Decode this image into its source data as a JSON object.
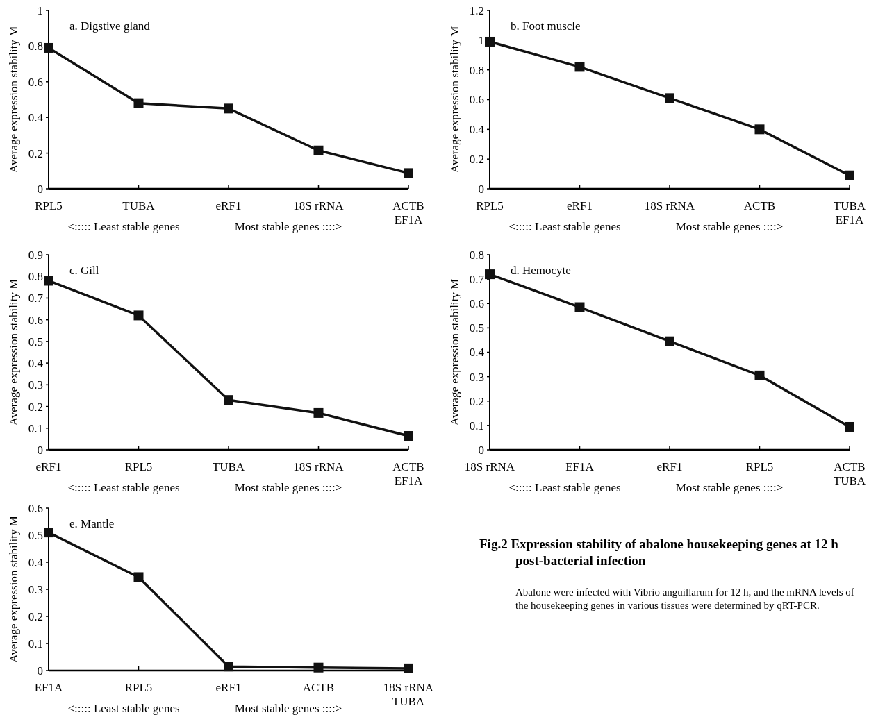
{
  "chart_data": [
    {
      "type": "line",
      "title": "a. Digstive gland",
      "ylabel": "Average expression stability M",
      "categories": [
        "RPL5",
        "TUBA",
        "eRF1",
        "18S rRNA",
        "ACTB\nEF1A"
      ],
      "values": [
        0.79,
        0.48,
        0.45,
        0.215,
        0.088
      ],
      "color": "#111111",
      "ylim": [
        0,
        1
      ],
      "yticks": [
        0,
        0.2,
        0.4,
        0.6,
        0.8,
        1
      ],
      "marker": "square",
      "line_style": "solid",
      "annotations": [
        "<:::::  Least stable genes",
        "Most stable genes ::::>"
      ]
    },
    {
      "type": "line",
      "title": "b. Foot muscle",
      "ylabel": "Average expression stability M",
      "categories": [
        "RPL5",
        "eRF1",
        "18S rRNA",
        "ACTB",
        "TUBA\nEF1A"
      ],
      "values": [
        0.99,
        0.82,
        0.61,
        0.4,
        0.09
      ],
      "color": "#111111",
      "ylim": [
        0,
        1.2
      ],
      "yticks": [
        0,
        0.2,
        0.4,
        0.6,
        0.8,
        1,
        1.2
      ],
      "marker": "square",
      "line_style": "solid",
      "annotations": [
        "<:::::  Least stable genes",
        "Most stable genes ::::>"
      ]
    },
    {
      "type": "line",
      "title": "c. Gill",
      "ylabel": "Average expression stability M",
      "categories": [
        "eRF1",
        "RPL5",
        "TUBA",
        "18S rRNA",
        "ACTB\nEF1A"
      ],
      "values": [
        0.78,
        0.62,
        0.23,
        0.17,
        0.064
      ],
      "color": "#111111",
      "ylim": [
        0,
        0.9
      ],
      "yticks": [
        0,
        0.1,
        0.2,
        0.3,
        0.4,
        0.5,
        0.6,
        0.7,
        0.8,
        0.9
      ],
      "marker": "square",
      "line_style": "solid",
      "annotations": [
        "<:::::  Least stable genes",
        "Most stable genes ::::>"
      ]
    },
    {
      "type": "line",
      "title": "d. Hemocyte",
      "ylabel": "Average expression stability M",
      "categories": [
        "18S rRNA",
        "EF1A",
        "eRF1",
        "RPL5",
        "ACTB\nTUBA"
      ],
      "values": [
        0.72,
        0.585,
        0.445,
        0.305,
        0.094
      ],
      "color": "#111111",
      "ylim": [
        0,
        0.8
      ],
      "yticks": [
        0,
        0.1,
        0.2,
        0.3,
        0.4,
        0.5,
        0.6,
        0.7,
        0.8
      ],
      "marker": "square",
      "line_style": "solid",
      "annotations": [
        "<:::::  Least stable genes",
        "Most stable genes ::::>"
      ]
    },
    {
      "type": "line",
      "title": "e. Mantle",
      "ylabel": "Average expression stability M",
      "categories": [
        "EF1A",
        "RPL5",
        "eRF1",
        "ACTB",
        "18S rRNA\nTUBA"
      ],
      "values": [
        0.51,
        0.345,
        0.015,
        0.011,
        0.008
      ],
      "color": "#111111",
      "ylim": [
        0,
        0.6
      ],
      "yticks": [
        0,
        0.1,
        0.2,
        0.3,
        0.4,
        0.5,
        0.6
      ],
      "marker": "square",
      "line_style": "solid",
      "annotations": [
        "<:::::  Least stable genes",
        "Most stable genes ::::>"
      ]
    },
    {
      "type": "other",
      "title": "Fig.2 Expression stability of abalone housekeeping genes at 12 h post-bacterial infection",
      "annotations": [
        "Abalone were infected with Vibrio anguillarum for 12 h, and the mRNA levels of the housekeeping genes in various tissues were determined by qRT-PCR."
      ]
    }
  ]
}
